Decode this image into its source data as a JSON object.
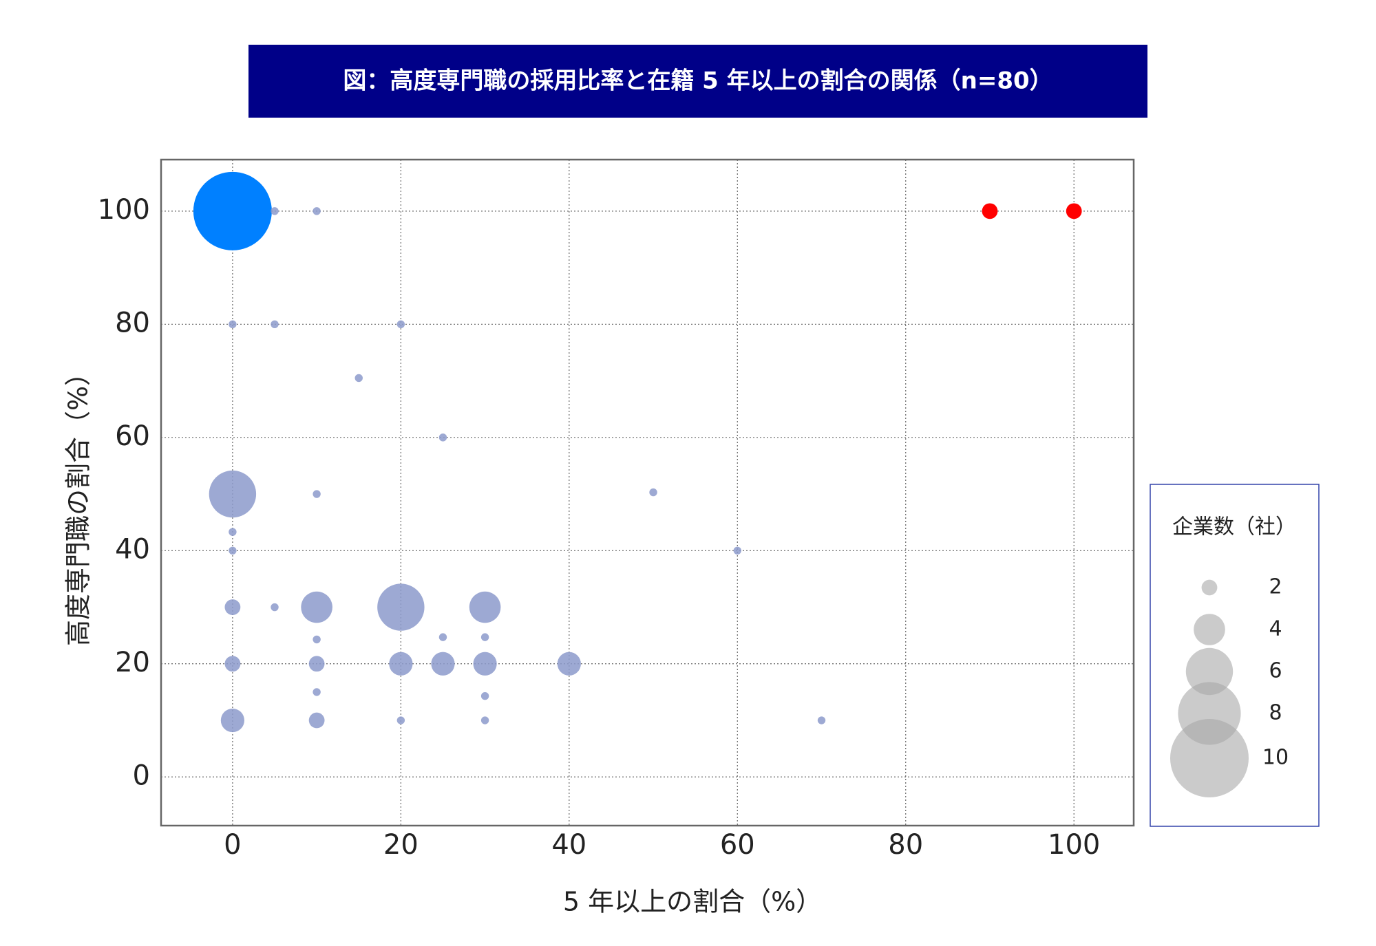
{
  "chart_data": {
    "type": "scatter",
    "title": "図：高度専門職の採用比率と在籍 5 年以上の割合の関係（n=80）",
    "x_label": "5 年以上の割合（%）",
    "y_label": "高度専門職の割合（%）",
    "x": [
      0,
      0,
      20,
      10,
      30,
      0,
      0,
      20,
      25,
      30,
      40,
      0,
      10,
      10,
      90,
      100,
      5,
      10,
      0,
      5,
      20,
      15,
      25,
      10,
      50,
      0,
      0,
      60,
      5,
      10,
      25,
      30,
      10,
      30,
      20,
      30,
      70
    ],
    "y": [
      100,
      50,
      30,
      30,
      30,
      30,
      20,
      20,
      20,
      20,
      20,
      10,
      10,
      20,
      100,
      100,
      100,
      100,
      80,
      80,
      80,
      70.5,
      60,
      50,
      50.3,
      43.3,
      40,
      40,
      30,
      24.3,
      24.7,
      24.7,
      15,
      14.3,
      10,
      10,
      10
    ],
    "sizes": [
      10,
      6,
      6,
      4,
      4,
      2,
      2,
      3,
      3,
      3,
      3,
      3,
      2,
      2,
      2,
      2,
      1,
      1,
      1,
      1,
      1,
      1,
      1,
      1,
      1,
      1,
      1,
      1,
      1,
      1,
      1,
      1,
      1,
      1,
      1,
      1,
      1
    ],
    "colors": [
      "#0080ff",
      "#8c9acb",
      "#8c9acb",
      "#8c9acb",
      "#8c9acb",
      "#8c9acb",
      "#8c9acb",
      "#8c9acb",
      "#8c9acb",
      "#8c9acb",
      "#8c9acb",
      "#8c9acb",
      "#8c9acb",
      "#8c9acb",
      "#ff0000",
      "#ff0000",
      "#8c9acb",
      "#8c9acb",
      "#8c9acb",
      "#8c9acb",
      "#8c9acb",
      "#8c9acb",
      "#8c9acb",
      "#8c9acb",
      "#8c9acb",
      "#8c9acb",
      "#8c9acb",
      "#8c9acb",
      "#8c9acb",
      "#8c9acb",
      "#8c9acb",
      "#8c9acb",
      "#8c9acb",
      "#8c9acb",
      "#8c9acb",
      "#8c9acb",
      "#8c9acb"
    ],
    "xlim": [
      -8.5,
      107.1
    ],
    "ylim": [
      -8.6,
      109.1
    ],
    "xticks": [
      0,
      20,
      40,
      60,
      80,
      100
    ],
    "yticks": [
      0,
      20,
      40,
      60,
      80,
      100
    ],
    "grid": true,
    "size_legend": {
      "title": "企業数（社）",
      "values": [
        2,
        4,
        6,
        8,
        10
      ],
      "color": "#a8a8a8"
    }
  }
}
